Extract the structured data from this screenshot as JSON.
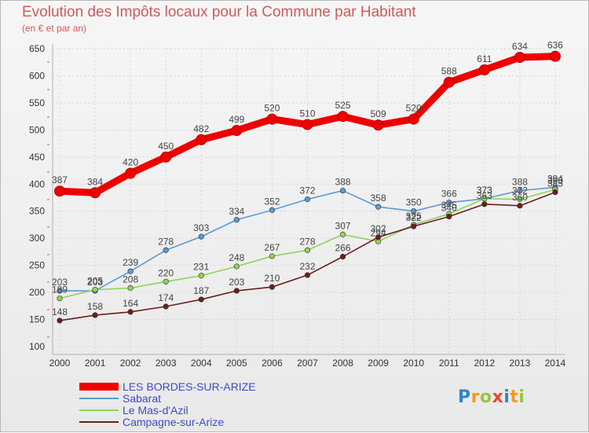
{
  "header": {
    "title": "Evolution des Impôts locaux pour la Commune par Habitant",
    "subtitle": "(en € et par an)"
  },
  "logo": {
    "text": "Proxiti"
  },
  "chart_data": {
    "type": "line",
    "title": "Evolution des Impôts locaux pour la Commune par Habitant",
    "subtitle": "(en € et par an)",
    "xlabel": "",
    "ylabel": "",
    "categories": [
      "2000",
      "2001",
      "2002",
      "2003",
      "2004",
      "2005",
      "2006",
      "2007",
      "2008",
      "2009",
      "2010",
      "2011",
      "2012",
      "2013",
      "2014"
    ],
    "ylim": [
      100,
      650
    ],
    "yticks": [
      100,
      150,
      200,
      250,
      300,
      350,
      400,
      450,
      500,
      550,
      600,
      650
    ],
    "grid": true,
    "legend_position": "bottom-left",
    "series": [
      {
        "name": "LES BORDES-SUR-ARIZE",
        "color": "#ee0000",
        "emphasis": true,
        "values": [
          387,
          384,
          420,
          450,
          482,
          499,
          520,
          510,
          525,
          509,
          520,
          588,
          611,
          634,
          636
        ],
        "labels": [
          "387",
          "384",
          "420",
          "450",
          "482",
          "499",
          "520",
          "510",
          "525",
          "509",
          "520",
          "588",
          "611",
          "634",
          "636"
        ]
      },
      {
        "name": "Sabarat",
        "color": "#5b9bd5",
        "values": [
          203,
          203,
          239,
          278,
          303,
          334,
          352,
          372,
          388,
          358,
          350,
          366,
          373,
          388,
          394
        ],
        "labels": [
          "203",
          "203",
          "239",
          "278",
          "303",
          "334",
          "352",
          "372",
          "388",
          "358",
          "350",
          "366",
          "373",
          "388",
          "394"
        ]
      },
      {
        "name": "Le Mas-d'Azil",
        "color": "#8fd35a",
        "values": [
          189,
          205,
          208,
          220,
          231,
          248,
          267,
          278,
          307,
          294,
          325,
          345,
          373,
          372,
          390
        ],
        "labels": [
          "189",
          "205",
          "208",
          "220",
          "231",
          "248",
          "267",
          "278",
          "307",
          "294",
          "325",
          "345",
          "373",
          "372",
          "390"
        ]
      },
      {
        "name": "Campagne-sur-Arize",
        "color": "#6b1e1e",
        "values": [
          148,
          158,
          164,
          174,
          187,
          203,
          210,
          232,
          266,
          302,
          322,
          340,
          363,
          360,
          385
        ],
        "labels": [
          "148",
          "158",
          "164",
          "174",
          "187",
          "203",
          "210",
          "232",
          "266",
          "302",
          "322",
          "340",
          "363",
          "360",
          "385"
        ]
      }
    ]
  }
}
